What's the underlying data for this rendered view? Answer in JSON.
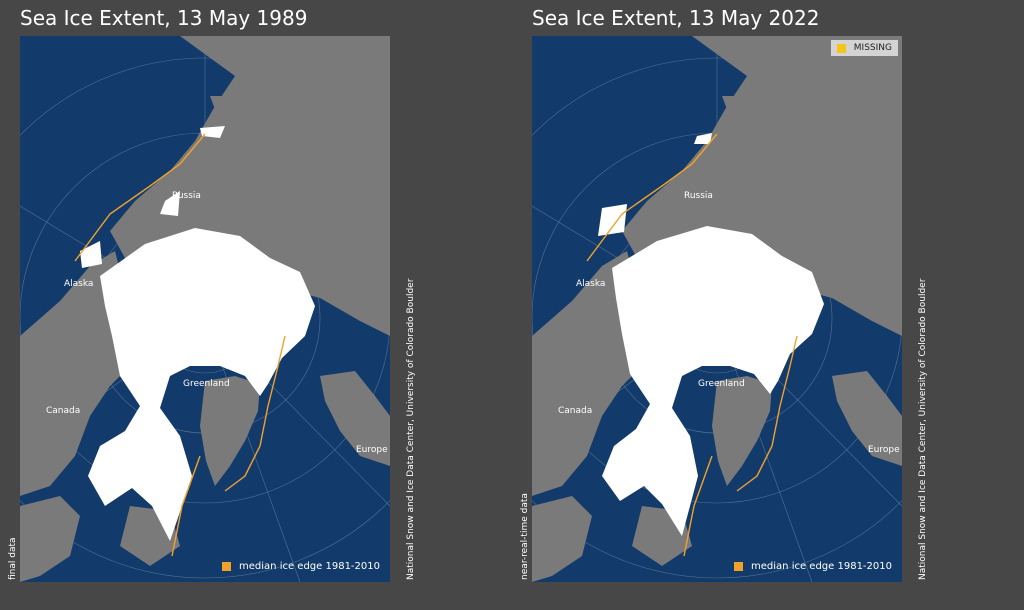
{
  "colors": {
    "background": "#474747",
    "ocean": "#123a6b",
    "land": "#7a7a7a",
    "ice": "#ffffff",
    "median_edge": "#f2a12b",
    "missing": "#f5c518",
    "grid": "#9aa8b8"
  },
  "maps": [
    {
      "title": "Sea Ice Extent, 13 May 1989",
      "status": "final data",
      "credit": "National Snow and Ice Data Center, University of Colorado Boulder",
      "legend": {
        "median_label": "median ice edge 1981-2010"
      },
      "places": {
        "russia": "Russia",
        "alaska": "Alaska",
        "canada": "Canada",
        "greenland": "Greenland",
        "europe": "Europe"
      }
    },
    {
      "title": "Sea Ice Extent, 13 May 2022",
      "status": "near-real-time data",
      "credit": "National Snow and Ice Data Center, University of Colorado Boulder",
      "legend": {
        "median_label": "median ice edge 1981-2010",
        "missing_label": "MISSING"
      },
      "places": {
        "russia": "Russia",
        "alaska": "Alaska",
        "canada": "Canada",
        "greenland": "Greenland",
        "europe": "Europe"
      }
    }
  ]
}
